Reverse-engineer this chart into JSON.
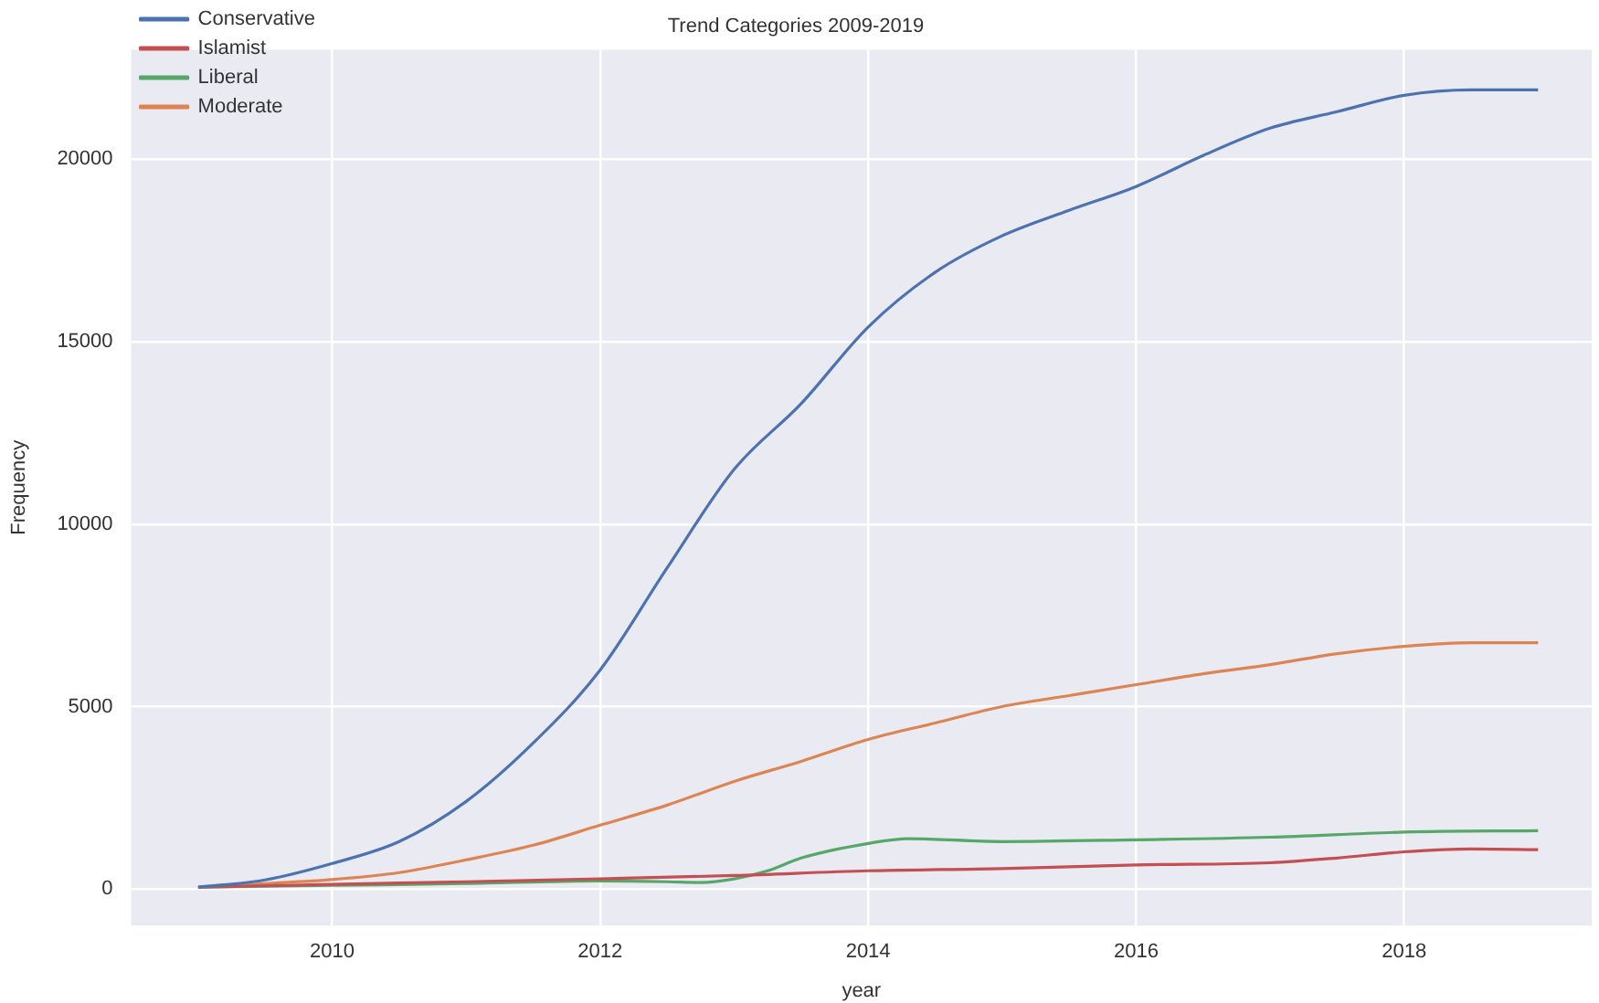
{
  "chart_data": {
    "type": "line",
    "title": "Trend Categories 2009-2019",
    "xlabel": "year",
    "ylabel": "Frequency",
    "xlim": [
      2008.5,
      2019.4
    ],
    "ylim": [
      -1000,
      23000
    ],
    "xticks": [
      2010,
      2012,
      2014,
      2016,
      2018
    ],
    "yticks": [
      0,
      5000,
      10000,
      15000,
      20000
    ],
    "grid": true,
    "legend": "top left",
    "marker": "none",
    "line_style": "solid",
    "series": [
      {
        "name": "Conservative",
        "color": "#4c72b0",
        "x": [
          2009,
          2009.5,
          2010,
          2010.5,
          2011,
          2011.5,
          2012,
          2012.5,
          2013,
          2013.5,
          2014,
          2014.5,
          2015,
          2015.5,
          2016,
          2016.5,
          2017,
          2017.5,
          2018,
          2018.5,
          2019
        ],
        "values": [
          50,
          250,
          700,
          1300,
          2400,
          4000,
          6000,
          8800,
          11500,
          13300,
          15400,
          16900,
          17900,
          18600,
          19250,
          20100,
          20850,
          21300,
          21750,
          21900,
          21900
        ]
      },
      {
        "name": "Islamist",
        "color": "#c44e52",
        "x": [
          2009,
          2010,
          2011,
          2012,
          2013,
          2014,
          2015,
          2016,
          2017,
          2017.5,
          2018,
          2018.5,
          2019
        ],
        "values": [
          50,
          130,
          200,
          280,
          370,
          500,
          560,
          660,
          720,
          850,
          1020,
          1100,
          1080
        ]
      },
      {
        "name": "Liberal",
        "color": "#55a868",
        "x": [
          2009,
          2010,
          2011,
          2012,
          2012.5,
          2012.75,
          2013,
          2013.25,
          2013.5,
          2014,
          2014.3,
          2015,
          2016,
          2017,
          2018,
          2019
        ],
        "values": [
          50,
          100,
          150,
          220,
          200,
          180,
          280,
          500,
          850,
          1250,
          1380,
          1300,
          1350,
          1420,
          1560,
          1600
        ]
      },
      {
        "name": "Moderate",
        "color": "#dd8452",
        "x": [
          2009,
          2009.5,
          2010,
          2010.5,
          2011,
          2011.5,
          2012,
          2012.5,
          2013,
          2013.5,
          2014,
          2014.5,
          2015,
          2015.5,
          2016,
          2016.5,
          2017,
          2017.5,
          2018,
          2018.5,
          2019
        ],
        "values": [
          50,
          150,
          260,
          450,
          800,
          1200,
          1750,
          2300,
          2950,
          3500,
          4100,
          4550,
          5000,
          5300,
          5600,
          5900,
          6150,
          6450,
          6650,
          6750,
          6750
        ]
      }
    ]
  }
}
